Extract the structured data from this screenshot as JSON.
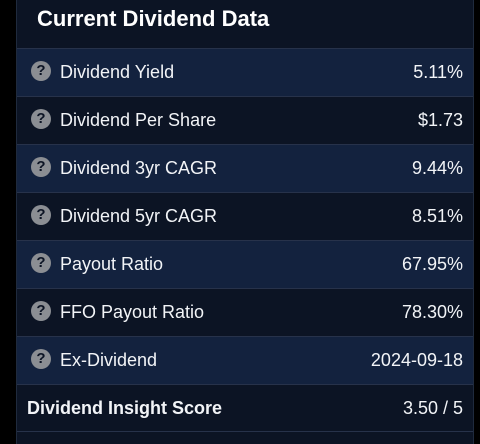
{
  "card": {
    "title": "Current Dividend Data",
    "rows": [
      {
        "label": "Dividend Yield",
        "value": "5.11%"
      },
      {
        "label": "Dividend Per Share",
        "value": "$1.73"
      },
      {
        "label": "Dividend 3yr CAGR",
        "value": "9.44%"
      },
      {
        "label": "Dividend 5yr CAGR",
        "value": "8.51%"
      },
      {
        "label": "Payout Ratio",
        "value": "67.95%"
      },
      {
        "label": "FFO Payout Ratio",
        "value": "78.30%"
      },
      {
        "label": "Ex-Dividend",
        "value": "2024-09-18"
      }
    ],
    "score": {
      "label": "Dividend Insight Score",
      "value": "3.50 / 5"
    },
    "info_icon": "question-circle-icon",
    "info_glyph": "?"
  },
  "colors": {
    "page_background": "#000000",
    "card_background": "#0c1424",
    "alt_row_background": "#13223e",
    "row_divider": "#27324a",
    "text": "#f2f4f7",
    "icon": "#8b8e93"
  }
}
